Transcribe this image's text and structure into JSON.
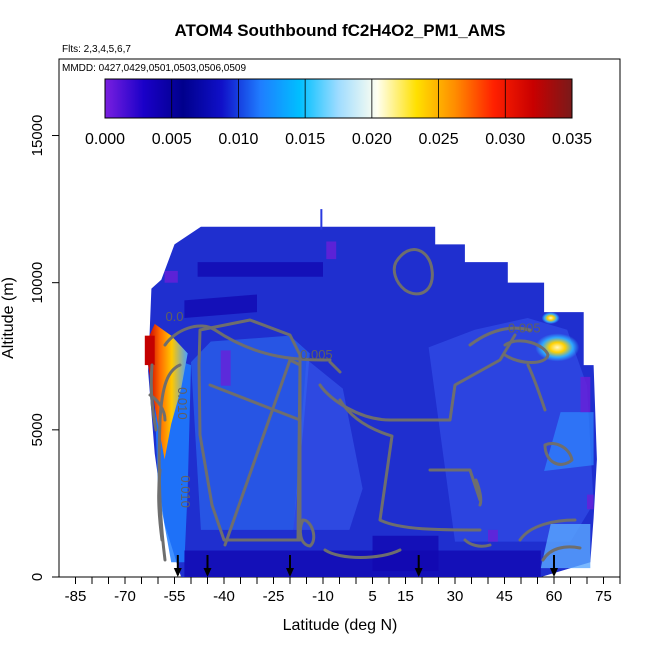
{
  "colors": {
    "ocean_blue": "#1f2fcf",
    "contour": "#6e6e6e",
    "arrow": "#000000",
    "axis": "#000000"
  },
  "colorbar": {
    "stops": [
      "#7a1fe0",
      "#1a00c8",
      "#00008c",
      "#1010c8",
      "#1f7dff",
      "#00bfff",
      "#9fdcff",
      "#fffff0",
      "#ffe000",
      "#ff8c00",
      "#ff2000",
      "#c80000",
      "#7a1a1a"
    ],
    "range": [
      0,
      0.035
    ]
  },
  "chart_data": {
    "type": "heatmap",
    "title": "ATOM4 Southbound fC2H4O2_PM1_AMS",
    "flights_note": "Flts: 2,3,4,5,6,7",
    "dates_note": "MMDD: 0427,0429,0501,0503,0506,0509",
    "xlabel": "Latitude (deg N)",
    "ylabel": "Altitude (m)",
    "xlim": [
      -90,
      80
    ],
    "ylim": [
      0,
      17600
    ],
    "x_ticks": [
      -85,
      -70,
      -55,
      -40,
      -25,
      -10,
      5,
      15,
      30,
      45,
      60,
      75
    ],
    "y_ticks": [
      0,
      5000,
      10000,
      15000
    ],
    "colorbar_ticks": [
      "0.000",
      "0.005",
      "0.010",
      "0.015",
      "0.020",
      "0.025",
      "0.030",
      "0.035"
    ],
    "colorbar_values": [
      0,
      0.005,
      0.01,
      0.015,
      0.02,
      0.025,
      0.03,
      0.035
    ],
    "contour_labels": [
      {
        "text": "0.005",
        "x": -12,
        "y": 7400
      },
      {
        "text": "0.005",
        "x": 51,
        "y": 8300
      },
      {
        "text": "0.010",
        "x": -54,
        "y": 5900
      },
      {
        "text": "0.010",
        "x": -53,
        "y": 2900
      },
      {
        "text": "0.0",
        "x": -55,
        "y": 8700
      }
    ],
    "arrows_lat": [
      -54,
      -45,
      -20,
      19,
      60
    ],
    "grid": false,
    "colorbar_position": "top"
  }
}
